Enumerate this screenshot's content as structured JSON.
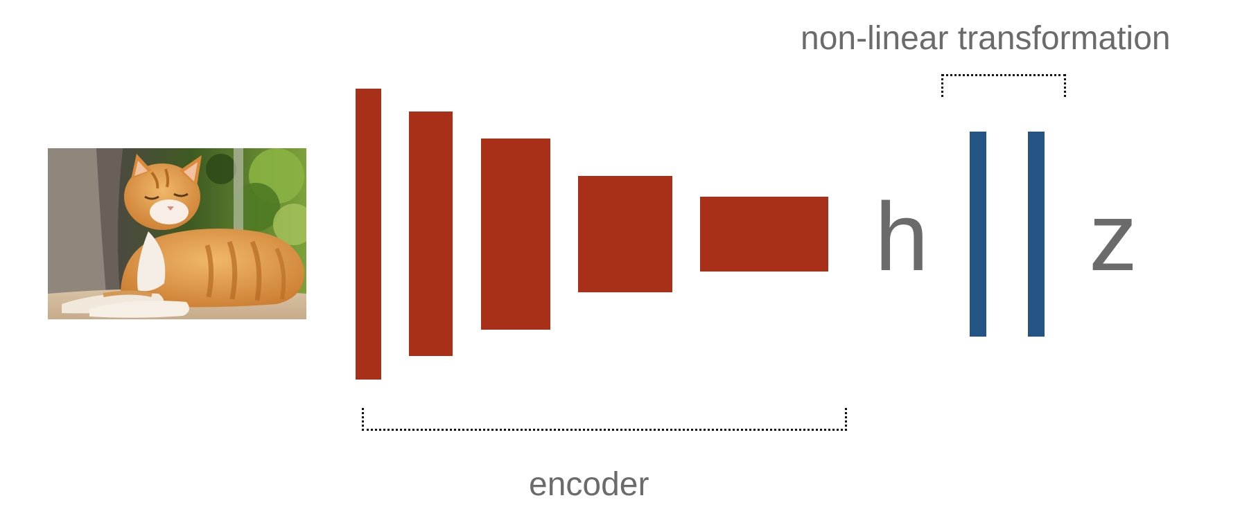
{
  "labels": {
    "top": "non-linear transformation",
    "bottom": "encoder",
    "representation": "h",
    "projection": "z"
  },
  "colors": {
    "encoder": "#a83019",
    "projection_head": "#245485",
    "text": "#6b6b6b",
    "bracket": "#111111"
  },
  "image": {
    "subject": "orange tabby cat lying down"
  },
  "layers": {
    "encoder_count": 5,
    "projection_count": 2
  }
}
